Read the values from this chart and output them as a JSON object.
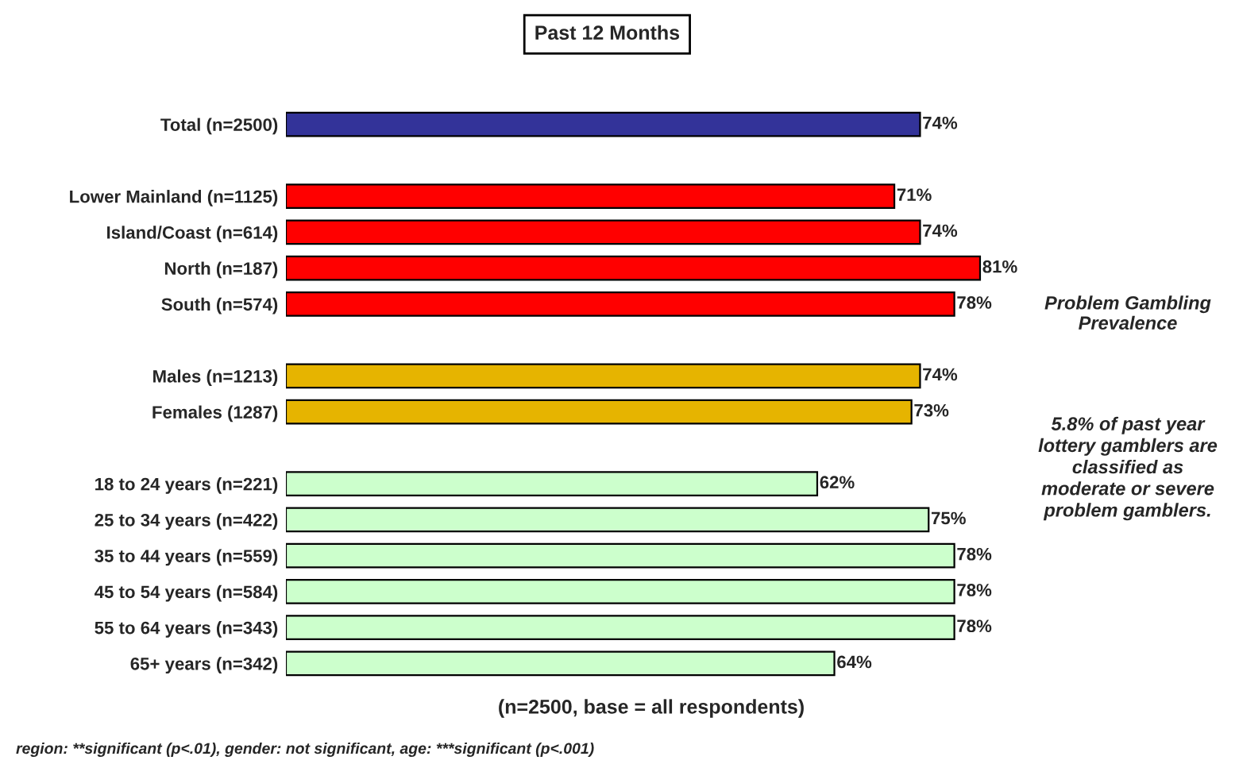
{
  "chart_data": {
    "type": "bar",
    "orientation": "horizontal",
    "title": "Past 12 Months",
    "categories": [
      "Total (n=2500)",
      null,
      "Lower Mainland (n=1125)",
      "Island/Coast (n=614)",
      "North (n=187)",
      "South (n=574)",
      null,
      "Males (n=1213)",
      "Females (1287)",
      null,
      "18 to 24 years (n=221)",
      "25 to 34 years (n=422)",
      "35 to 44 years (n=559)",
      "45 to 54 years (n=584)",
      "55 to 64 years (n=343)",
      "65+ years (n=342)"
    ],
    "values": [
      74,
      null,
      71,
      74,
      81,
      78,
      null,
      74,
      73,
      null,
      62,
      75,
      78,
      78,
      78,
      64
    ],
    "value_labels": [
      "74%",
      null,
      "71%",
      "74%",
      "81%",
      "78%",
      null,
      "74%",
      "73%",
      null,
      "62%",
      "75%",
      "78%",
      "78%",
      "78%",
      "64%"
    ],
    "colors": [
      "#333399",
      null,
      "#ff0000",
      "#ff0000",
      "#ff0000",
      "#ff0000",
      null,
      "#e6b400",
      "#e6b400",
      null,
      "#ccffcc",
      "#ccffcc",
      "#ccffcc",
      "#ccffcc",
      "#ccffcc",
      "#ccffcc"
    ],
    "annotations": [
      "Problem Gambling\nPrevalence",
      "5.8% of past year\nlottery gamblers are\nclassified as\nmoderate or severe\nproblem gamblers.",
      "(n=2500, base = all respondents)",
      "region: **significant (p<.01), gender: not significant, age: ***significant (p<.001)"
    ],
    "grid": false,
    "legend": false
  }
}
